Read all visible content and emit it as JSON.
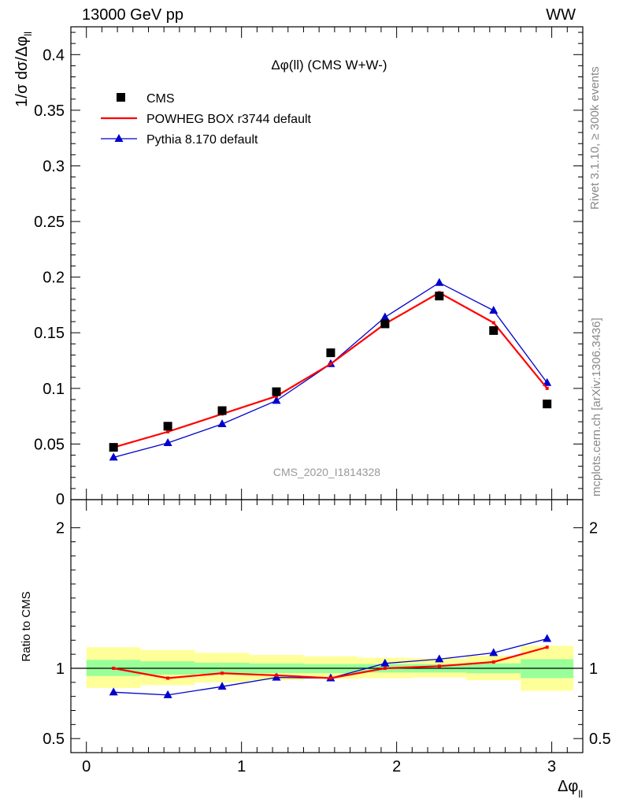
{
  "header": {
    "left": "13000 GeV pp",
    "right": "WW"
  },
  "side_text": {
    "rivet": "Rivet 3.1.10, ≥ 300k events",
    "mcplots": "mcplots.cern.ch [arXiv:1306.3436]"
  },
  "colors": {
    "cms": "#000000",
    "powheg": "#ff0000",
    "pythia": "#0000cc",
    "band_inner": "#99ff99",
    "band_outer": "#ffff99"
  },
  "chart_data": [
    {
      "type": "scatter",
      "panel": "main",
      "title": "Δφ(ll) (CMS W+W-)",
      "watermark": "CMS_2020_I1814328",
      "ylabel": "1/σ dσ/Δφ_ll",
      "xlabel": "Δφ_ll",
      "xlim": [
        -0.1,
        3.2
      ],
      "ylim": [
        0,
        0.425
      ],
      "yticks": [
        0,
        0.05,
        0.1,
        0.15,
        0.2,
        0.25,
        0.3,
        0.35,
        0.4
      ],
      "ytick_labels": [
        "0",
        "0.05",
        "0.1",
        "0.15",
        "0.2",
        "0.25",
        "0.3",
        "0.35",
        "0.4"
      ],
      "legend_position": "top-left",
      "x": [
        0.175,
        0.525,
        0.875,
        1.225,
        1.575,
        1.925,
        2.275,
        2.625,
        2.97
      ],
      "bin_edges": [
        0,
        0.35,
        0.7,
        1.05,
        1.4,
        1.75,
        2.1,
        2.45,
        2.8,
        3.14
      ],
      "series": [
        {
          "name": "CMS",
          "marker": "square",
          "values": [
            0.047,
            0.066,
            0.08,
            0.097,
            0.132,
            0.158,
            0.183,
            0.152,
            0.086
          ]
        },
        {
          "name": "POWHEG BOX r3744 default",
          "marker": "line",
          "values": [
            0.047,
            0.061,
            0.077,
            0.093,
            0.122,
            0.158,
            0.186,
            0.159,
            0.1
          ]
        },
        {
          "name": "Pythia 8.170 default",
          "marker": "triangle",
          "values": [
            0.038,
            0.051,
            0.068,
            0.089,
            0.122,
            0.164,
            0.195,
            0.17,
            0.105
          ]
        }
      ]
    },
    {
      "type": "line",
      "panel": "ratio",
      "ylabel": "Ratio to CMS",
      "xlabel": "Δφ_ll",
      "xlim": [
        -0.1,
        3.2
      ],
      "ylim": [
        0.4,
        2.2
      ],
      "yticks": [
        0.5,
        1,
        2
      ],
      "ytick_labels": [
        "0.5",
        "1",
        "2"
      ],
      "xticks": [
        0,
        1,
        2,
        3
      ],
      "xtick_labels": [
        "0",
        "1",
        "2",
        "3"
      ],
      "x": [
        0.175,
        0.525,
        0.875,
        1.225,
        1.575,
        1.925,
        2.275,
        2.625,
        2.97
      ],
      "bin_edges": [
        0,
        0.35,
        0.7,
        1.05,
        1.4,
        1.75,
        2.1,
        2.45,
        2.8,
        3.14
      ],
      "band_inner": [
        [
          0.945,
          1.06
        ],
        [
          0.955,
          1.05
        ],
        [
          0.96,
          1.04
        ],
        [
          0.965,
          1.035
        ],
        [
          0.965,
          1.03
        ],
        [
          0.97,
          1.03
        ],
        [
          0.97,
          1.03
        ],
        [
          0.965,
          1.035
        ],
        [
          0.93,
          1.065
        ]
      ],
      "band_outer": [
        [
          0.86,
          1.15
        ],
        [
          0.88,
          1.13
        ],
        [
          0.9,
          1.11
        ],
        [
          0.915,
          1.095
        ],
        [
          0.925,
          1.085
        ],
        [
          0.93,
          1.075
        ],
        [
          0.935,
          1.07
        ],
        [
          0.915,
          1.09
        ],
        [
          0.84,
          1.16
        ]
      ],
      "series": [
        {
          "name": "POWHEG BOX r3744 default",
          "values": [
            1.0,
            0.93,
            0.965,
            0.95,
            0.93,
            1.0,
            1.015,
            1.045,
            1.15
          ]
        },
        {
          "name": "Pythia 8.170 default",
          "values": [
            0.83,
            0.81,
            0.87,
            0.935,
            0.93,
            1.035,
            1.065,
            1.11,
            1.21
          ]
        }
      ]
    }
  ]
}
